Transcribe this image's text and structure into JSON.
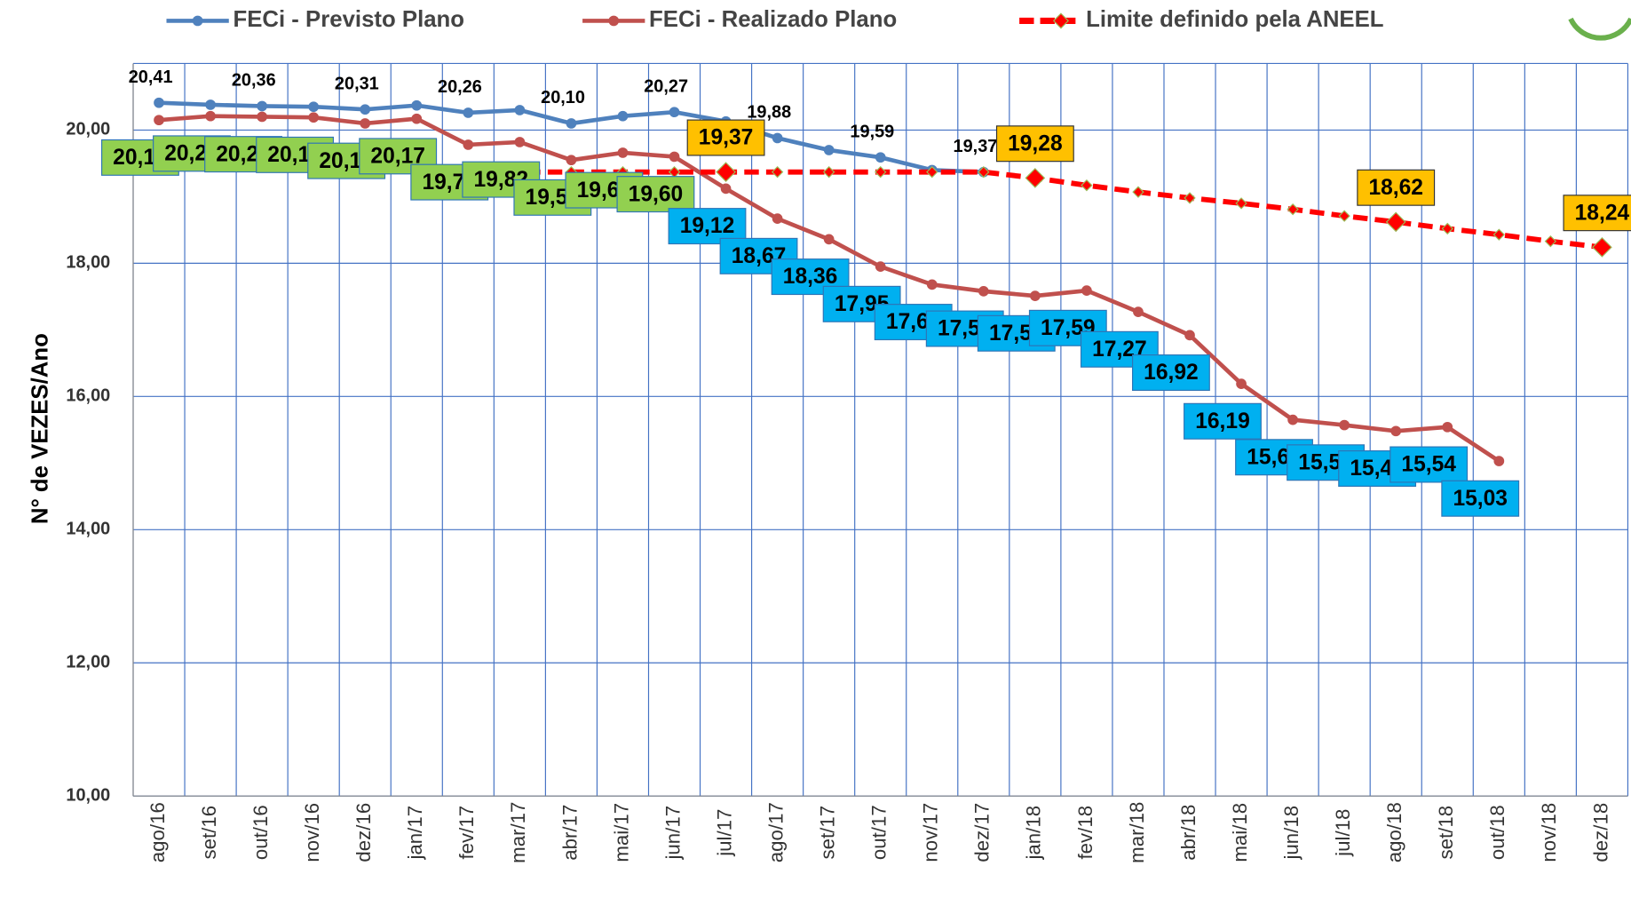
{
  "chart_data": {
    "type": "line",
    "y_label": "N° de VEZES/Ano",
    "categories": [
      "ago/16",
      "set/16",
      "out/16",
      "nov/16",
      "dez/16",
      "jan/17",
      "fev/17",
      "mar/17",
      "abr/17",
      "mai/17",
      "jun/17",
      "jul/17",
      "ago/17",
      "set/17",
      "out/17",
      "nov/17",
      "dez/17",
      "jan/18",
      "fev/18",
      "mar/18",
      "abr/18",
      "mai/18",
      "jun/18",
      "jul/18",
      "ago/18",
      "set/18",
      "out/18",
      "nov/18",
      "dez/18"
    ],
    "ylim": [
      10,
      21
    ],
    "yticks": [
      {
        "value": 10,
        "label": "10,00"
      },
      {
        "value": 12,
        "label": "12,00"
      },
      {
        "value": 14,
        "label": "14,00"
      },
      {
        "value": 16,
        "label": "16,00"
      },
      {
        "value": 18,
        "label": "18,00"
      },
      {
        "value": 20,
        "label": "20,00"
      }
    ],
    "grid": true,
    "legend": "top",
    "series": [
      {
        "name": "FECi  - Previsto Plano",
        "color": "#4f81bd",
        "style": "solid",
        "values": [
          20.41,
          20.38,
          20.36,
          20.35,
          20.31,
          20.37,
          20.26,
          20.3,
          20.1,
          20.21,
          20.27,
          20.13,
          19.88,
          19.7,
          19.59,
          19.4,
          19.37,
          null,
          null,
          null,
          null,
          null,
          null,
          null,
          null,
          null,
          null,
          null,
          null
        ],
        "value_labels": [
          "20,41",
          null,
          "20,36",
          null,
          "20,31",
          null,
          "20,26",
          null,
          "20,10",
          null,
          "20,27",
          null,
          "19,88",
          null,
          "19,59",
          null,
          "19,37",
          null,
          null,
          null,
          null,
          null,
          null,
          null,
          null,
          null,
          null,
          null,
          null
        ]
      },
      {
        "name": "FECi - Realizado Plano",
        "color": "#c0504d",
        "style": "solid",
        "values": [
          20.15,
          20.21,
          20.2,
          20.19,
          20.1,
          20.17,
          19.78,
          19.82,
          19.55,
          19.66,
          19.6,
          19.12,
          18.67,
          18.36,
          17.95,
          17.68,
          17.58,
          17.51,
          17.59,
          17.27,
          16.92,
          16.19,
          15.65,
          15.57,
          15.48,
          15.54,
          15.03,
          null,
          null
        ],
        "value_labels": [
          "20,15",
          "20,21",
          "20,20",
          "20,19",
          "20,10",
          "20,17",
          "19,78",
          "19,82",
          "19,55",
          "19,66",
          "19,60",
          "19,12",
          "18,67",
          "18,36",
          "17,95",
          "17,68",
          "17,58",
          "17,51",
          "17,59",
          "17,27",
          "16,92",
          "16,19",
          "15,65",
          "15,57",
          "15,48",
          "15,54",
          "15,03",
          null,
          null
        ]
      },
      {
        "name": "Limite definido pela ANEEL",
        "color": "#ff0000",
        "style": "dashed",
        "values": [
          null,
          null,
          null,
          null,
          null,
          19.37,
          19.37,
          19.37,
          19.37,
          19.37,
          19.37,
          19.37,
          19.37,
          19.37,
          19.37,
          19.37,
          19.37,
          19.28,
          19.17,
          19.07,
          18.98,
          18.9,
          18.81,
          18.71,
          18.62,
          18.52,
          18.43,
          18.33,
          18.24
        ],
        "value_labels": [
          null,
          null,
          null,
          null,
          null,
          null,
          null,
          null,
          null,
          null,
          null,
          "19,37",
          null,
          null,
          null,
          null,
          null,
          "19,28",
          null,
          null,
          null,
          null,
          null,
          null,
          "18,62",
          null,
          null,
          null,
          "18,24"
        ]
      }
    ]
  }
}
